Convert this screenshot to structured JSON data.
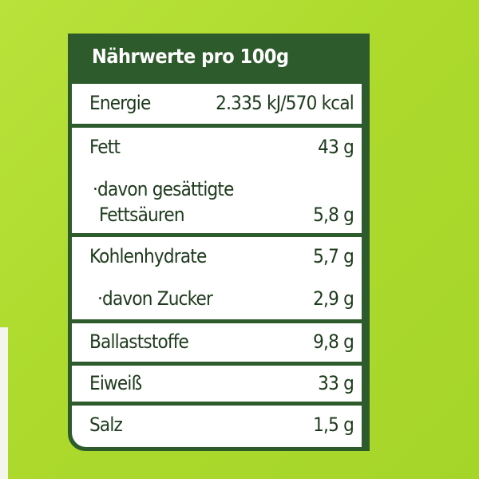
{
  "title": "Nährwerte pro 100g",
  "rows": [
    {
      "label": "Energie",
      "value": "2.335 kJ/570 kcal"
    },
    {
      "label": "Fett",
      "value": "43 g"
    },
    {
      "label": "·davon gesättigte",
      "label2": "Fettsäuren",
      "value": "5,8 g"
    },
    {
      "label": "Kohlenhydrate",
      "value": "5,7 g"
    },
    {
      "label": "·davon Zucker",
      "value": "2,9 g"
    },
    {
      "label": "Ballaststoffe",
      "value": "9,8 g"
    },
    {
      "label": "Eiweiß",
      "value": "33 g"
    },
    {
      "label": "Salz",
      "value": "1,5 g"
    }
  ],
  "colors": {
    "background": "#b0dc30",
    "label_green": "#2e5b2c",
    "text": "#1e3a1c"
  }
}
